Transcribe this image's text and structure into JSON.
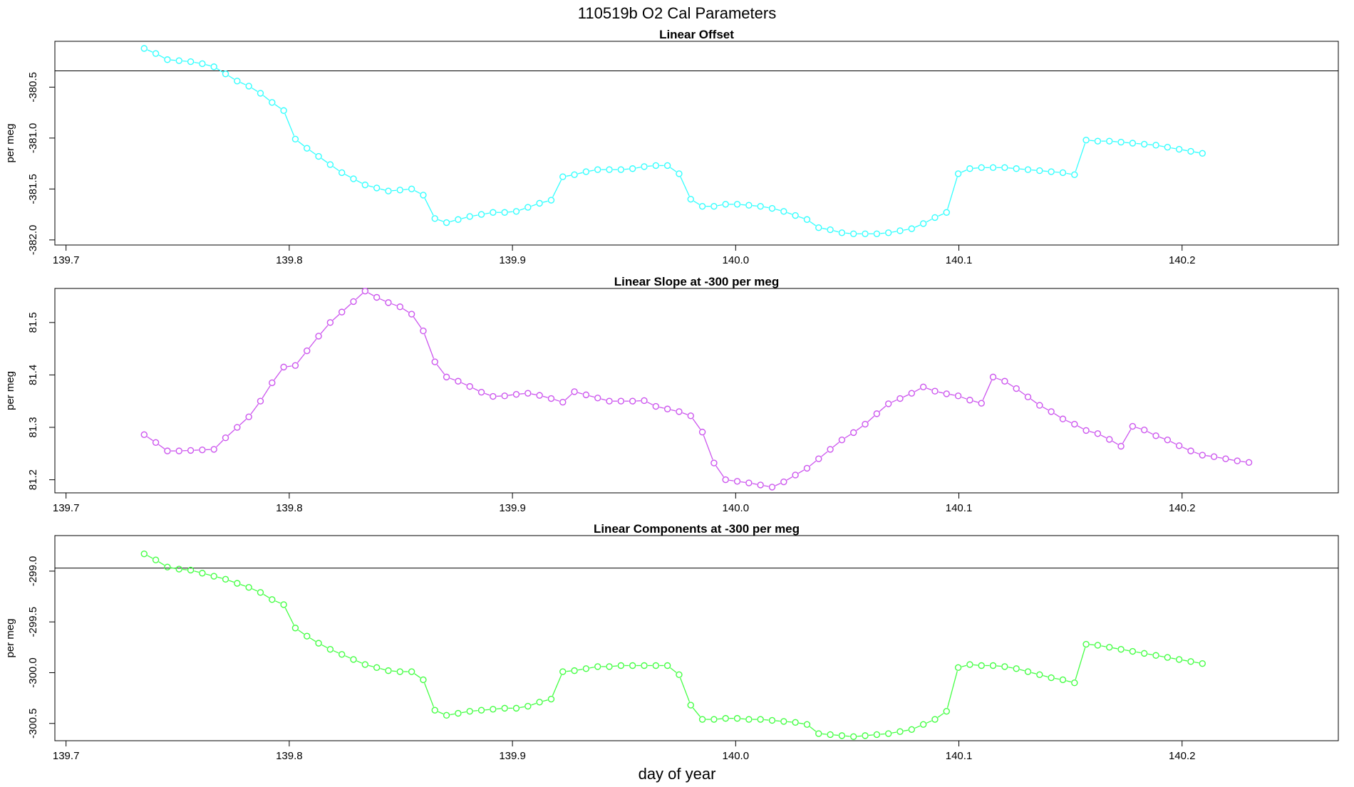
{
  "figure": {
    "title": "110519b   O2 Cal Parameters",
    "xlabel": "day of year"
  },
  "chart_data": [
    {
      "type": "line",
      "title": "Linear Offset",
      "ylabel": "per meg",
      "color": "#33ffff",
      "xlim": [
        139.695,
        140.27
      ],
      "ylim": [
        -382.05,
        -380.05
      ],
      "xticks": [
        "139.7",
        "139.8",
        "139.9",
        "140.0",
        "140.1",
        "140.2"
      ],
      "xtick_values": [
        139.7,
        139.8,
        139.9,
        140.0,
        140.1,
        140.2
      ],
      "yticks": [
        "-382.0",
        "-381.5",
        "-381.0",
        "-380.5"
      ],
      "ytick_values": [
        -382.0,
        -381.5,
        -381.0,
        -380.5
      ],
      "hline": -380.34,
      "x_start": 139.735,
      "x_step": 0.00521,
      "series": [
        {
          "values": [
            -380.12,
            -380.17,
            -380.23,
            -380.24,
            -380.25,
            -380.27,
            -380.3,
            -380.37,
            -380.44,
            -380.49,
            -380.56,
            -380.65,
            -380.73,
            -381.01,
            -381.1,
            -381.18,
            -381.26,
            -381.34,
            -381.4,
            -381.46,
            -381.49,
            -381.52,
            -381.51,
            -381.5,
            -381.56,
            -381.79,
            -381.83,
            -381.8,
            -381.77,
            -381.75,
            -381.73,
            -381.73,
            -381.72,
            -381.68,
            -381.64,
            -381.61,
            -381.38,
            -381.36,
            -381.33,
            -381.31,
            -381.31,
            -381.31,
            -381.3,
            -381.28,
            -381.27,
            -381.27,
            -381.35,
            -381.6,
            -381.67,
            -381.67,
            -381.65,
            -381.65,
            -381.66,
            -381.67,
            -381.69,
            -381.72,
            -381.76,
            -381.8,
            -381.88,
            -381.9,
            -381.93,
            -381.94,
            -381.94,
            -381.94,
            -381.93,
            -381.91,
            -381.89,
            -381.84,
            -381.78,
            -381.73,
            -381.35,
            -381.3,
            -381.29,
            -381.29,
            -381.29,
            -381.3,
            -381.31,
            -381.32,
            -381.33,
            -381.34,
            -381.36,
            -381.02,
            -381.03,
            -381.03,
            -381.04,
            -381.05,
            -381.06,
            -381.07,
            -381.09,
            -381.11,
            -381.13,
            -381.15
          ]
        }
      ]
    },
    {
      "type": "line",
      "title": "Linear Slope at -300 per meg",
      "ylabel": "per meg",
      "color": "#cc55ee",
      "xlim": [
        139.695,
        140.27
      ],
      "ylim": [
        81.175,
        81.565
      ],
      "xticks": [
        "139.7",
        "139.8",
        "139.9",
        "140.0",
        "140.1",
        "140.2"
      ],
      "xtick_values": [
        139.7,
        139.8,
        139.9,
        140.0,
        140.1,
        140.2
      ],
      "yticks": [
        "81.2",
        "81.3",
        "81.4",
        "81.5"
      ],
      "ytick_values": [
        81.2,
        81.3,
        81.4,
        81.5
      ],
      "x_start": 139.735,
      "x_step": 0.00521,
      "series": [
        {
          "values": [
            81.286,
            81.271,
            81.255,
            81.255,
            81.256,
            81.257,
            81.258,
            81.28,
            81.3,
            81.32,
            81.35,
            81.385,
            81.415,
            81.418,
            81.446,
            81.474,
            81.5,
            81.52,
            81.54,
            81.56,
            81.548,
            81.538,
            81.53,
            81.516,
            81.484,
            81.425,
            81.396,
            81.388,
            81.378,
            81.367,
            81.359,
            81.36,
            81.363,
            81.365,
            81.361,
            81.355,
            81.348,
            81.368,
            81.362,
            81.356,
            81.35,
            81.35,
            81.35,
            81.351,
            81.34,
            81.335,
            81.33,
            81.322,
            81.291,
            81.232,
            81.2,
            81.197,
            81.194,
            81.19,
            81.186,
            81.196,
            81.209,
            81.222,
            81.24,
            81.258,
            81.276,
            81.29,
            81.306,
            81.326,
            81.345,
            81.355,
            81.365,
            81.377,
            81.369,
            81.364,
            81.36,
            81.352,
            81.346,
            81.396,
            81.388,
            81.374,
            81.358,
            81.342,
            81.33,
            81.316,
            81.306,
            81.294,
            81.288,
            81.277,
            81.264,
            81.302,
            81.295,
            81.284,
            81.276,
            81.265,
            81.255,
            81.247,
            81.244,
            81.24,
            81.236,
            81.233
          ]
        }
      ]
    },
    {
      "type": "line",
      "title": "Linear Components at -300 per meg",
      "ylabel": "per meg",
      "color": "#44ff44",
      "xlim": [
        139.695,
        140.27
      ],
      "ylim": [
        -300.67,
        -298.65
      ],
      "xticks": [
        "139.7",
        "139.8",
        "139.9",
        "140.0",
        "140.1",
        "140.2"
      ],
      "xtick_values": [
        139.7,
        139.8,
        139.9,
        140.0,
        140.1,
        140.2
      ],
      "yticks": [
        "-300.5",
        "-300.0",
        "-299.5",
        "-299.0"
      ],
      "ytick_values": [
        -300.5,
        -300.0,
        -299.5,
        -299.0
      ],
      "hline": -298.97,
      "x_start": 139.735,
      "x_step": 0.00521,
      "series": [
        {
          "values": [
            -298.83,
            -298.89,
            -298.96,
            -298.98,
            -298.99,
            -299.02,
            -299.05,
            -299.08,
            -299.12,
            -299.16,
            -299.21,
            -299.28,
            -299.33,
            -299.56,
            -299.64,
            -299.71,
            -299.77,
            -299.82,
            -299.87,
            -299.92,
            -299.95,
            -299.98,
            -299.99,
            -299.99,
            -300.07,
            -300.37,
            -300.42,
            -300.4,
            -300.38,
            -300.37,
            -300.36,
            -300.35,
            -300.35,
            -300.33,
            -300.29,
            -300.26,
            -299.99,
            -299.98,
            -299.96,
            -299.94,
            -299.94,
            -299.93,
            -299.93,
            -299.93,
            -299.93,
            -299.93,
            -300.02,
            -300.32,
            -300.46,
            -300.46,
            -300.45,
            -300.45,
            -300.46,
            -300.46,
            -300.47,
            -300.48,
            -300.49,
            -300.51,
            -300.6,
            -300.61,
            -300.62,
            -300.63,
            -300.62,
            -300.61,
            -300.6,
            -300.58,
            -300.56,
            -300.51,
            -300.46,
            -300.38,
            -299.95,
            -299.92,
            -299.93,
            -299.93,
            -299.94,
            -299.96,
            -299.99,
            -300.02,
            -300.05,
            -300.07,
            -300.1,
            -299.72,
            -299.73,
            -299.75,
            -299.77,
            -299.79,
            -299.81,
            -299.83,
            -299.85,
            -299.87,
            -299.89,
            -299.91
          ]
        }
      ]
    }
  ]
}
